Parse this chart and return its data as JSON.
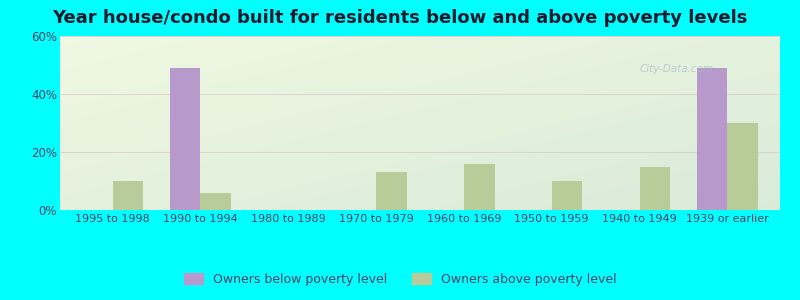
{
  "title": "Year house/condo built for residents below and above poverty levels",
  "categories": [
    "1995 to 1998",
    "1990 to 1994",
    "1980 to 1989",
    "1970 to 1979",
    "1960 to 1969",
    "1950 to 1959",
    "1940 to 1949",
    "1939 or earlier"
  ],
  "below_poverty": [
    0,
    49,
    0,
    0,
    0,
    0,
    0,
    49
  ],
  "above_poverty": [
    10,
    6,
    0,
    13,
    16,
    10,
    15,
    30
  ],
  "below_color": "#b899cc",
  "above_color": "#b8cc99",
  "below_label": "Owners below poverty level",
  "above_label": "Owners above poverty level",
  "ylim": [
    0,
    60
  ],
  "yticks": [
    0,
    20,
    40,
    60
  ],
  "ytick_labels": [
    "0%",
    "20%",
    "40%",
    "60%"
  ],
  "outer_background": "#00ffff",
  "bar_width": 0.35,
  "title_fontsize": 13,
  "title_color": "#1a1a2e",
  "tick_color": "#444466",
  "grid_color": "#ddddcc",
  "watermark_text": "City-Data.com",
  "watermark_color": "#aabbcc",
  "watermark_alpha": 0.7
}
